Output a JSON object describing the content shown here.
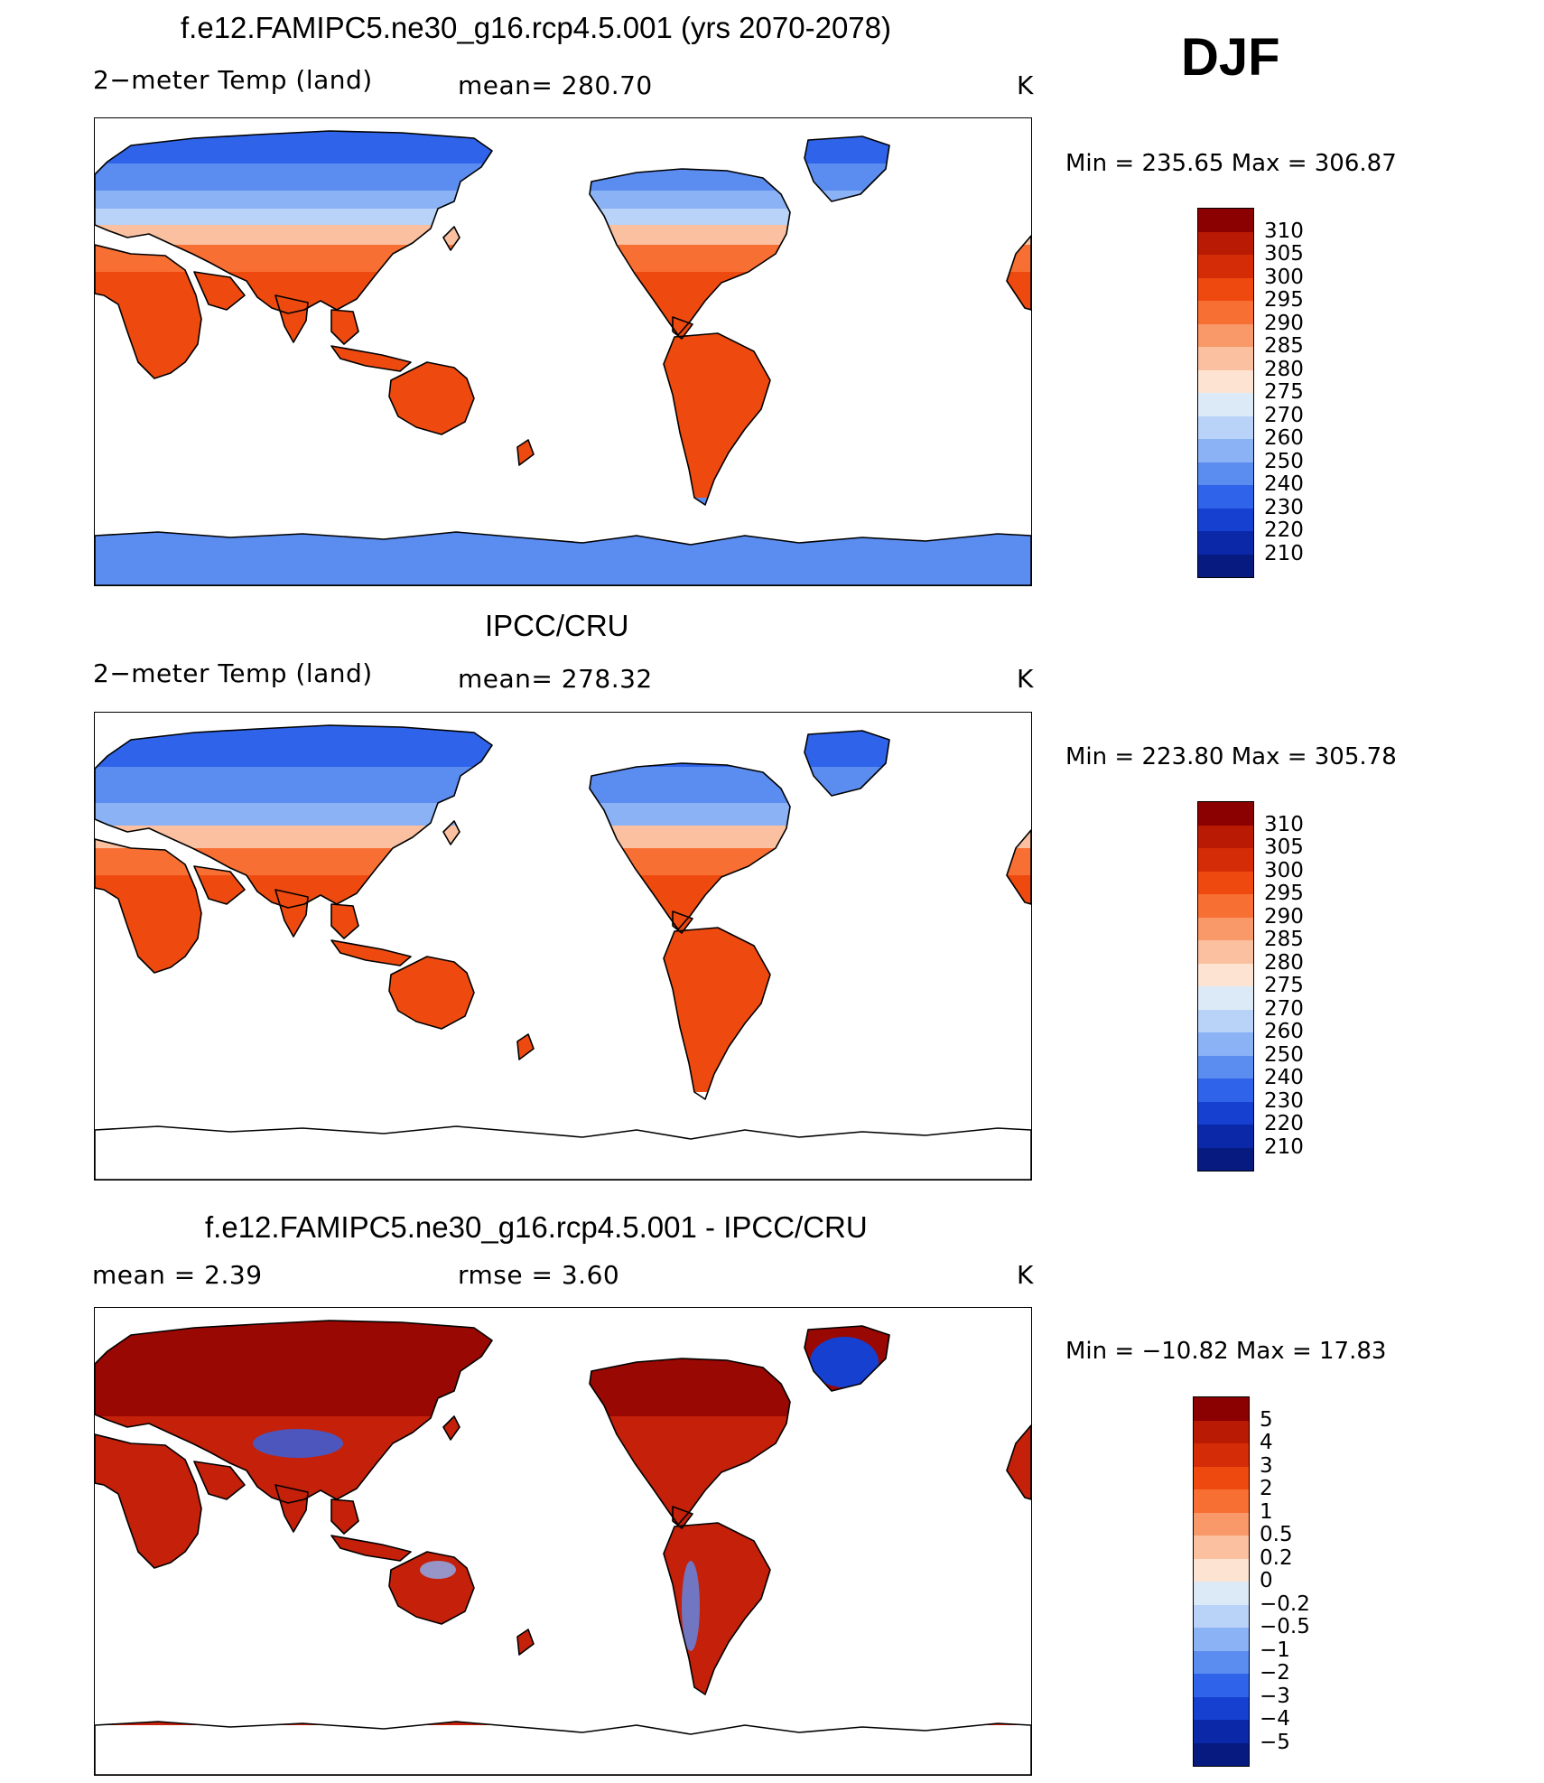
{
  "header": {
    "season": "DJF"
  },
  "panels": [
    {
      "title": "f.e12.FAMIPC5.ne30_g16.rcp4.5.001 (yrs 2070-2078)",
      "left": "2−meter Temp (land)",
      "center": "mean= 280.70",
      "units": "K",
      "minmax": "Min  =  235.65  Max  =  306.87",
      "scheme": "model"
    },
    {
      "title": "IPCC/CRU",
      "left": "2−meter Temp (land)",
      "center": "mean= 278.32",
      "units": "K",
      "minmax": "Min  =  223.80  Max  =  305.78",
      "scheme": "obs"
    },
    {
      "title": "f.e12.FAMIPC5.ne30_g16.rcp4.5.001 - IPCC/CRU",
      "left": "mean =     2.39",
      "center": "rmse =     3.60",
      "units": "K",
      "minmax": "Min  =  −10.82  Max  =    17.83",
      "scheme": "diff"
    }
  ],
  "colorbars": {
    "absolute": {
      "labels": [
        "310",
        "305",
        "300",
        "295",
        "290",
        "285",
        "280",
        "275",
        "270",
        "260",
        "250",
        "240",
        "230",
        "220",
        "210"
      ],
      "colors": [
        "#8b0000",
        "#b81a04",
        "#d42c06",
        "#ee4a10",
        "#f86f34",
        "#f99868",
        "#fbc0a0",
        "#fde4d2",
        "#dceaf8",
        "#b8d2f8",
        "#8cb2f6",
        "#5b8cf0",
        "#2f64ea",
        "#1640d0",
        "#0a28a8",
        "#061a80"
      ]
    },
    "difference": {
      "labels": [
        "5",
        "4",
        "3",
        "2",
        "1",
        "0.5",
        "0.2",
        "0",
        "−0.2",
        "−0.5",
        "−1",
        "−2",
        "−3",
        "−4",
        "−5"
      ],
      "colors": [
        "#8b0000",
        "#b81a04",
        "#d42c06",
        "#ee4a10",
        "#f86f34",
        "#f99868",
        "#fbc0a0",
        "#fde4d2",
        "#dceaf8",
        "#b8d2f8",
        "#8cb2f6",
        "#5b8cf0",
        "#2f64ea",
        "#1640d0",
        "#0a28a8",
        "#061a80"
      ]
    }
  },
  "palette": {
    "cold_deep": "#2f64ea",
    "cold": "#5b8cf0",
    "cool": "#8cb2f6",
    "pale_blue": "#b8d2f8",
    "pale": "#fde4d2",
    "warm_light": "#fbc0a0",
    "warm": "#f86f34",
    "hot": "#ee4a10",
    "hotter": "#d42c06",
    "darkred": "#8b0000",
    "diff_red": "#c4200a"
  }
}
